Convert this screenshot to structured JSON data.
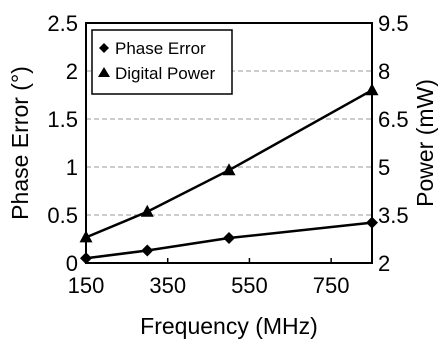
{
  "chart_data": {
    "type": "line",
    "xlabel": "Frequency (MHz)",
    "ylabel_left": "Phase Error (°)",
    "ylabel_right": "Power (mW)",
    "x_ticks": [
      "150",
      "350",
      "550",
      "750"
    ],
    "y_left_ticks": [
      "0",
      "0.5",
      "1",
      "1.5",
      "2",
      "2.5"
    ],
    "y_right_ticks": [
      "2",
      "3.5",
      "5",
      "6.5",
      "8",
      "9.5"
    ],
    "xlim": [
      150,
      850
    ],
    "ylim_left": [
      0,
      2.5
    ],
    "ylim_right": [
      2,
      9.5
    ],
    "grid": true,
    "legend_position": "top-left",
    "series": [
      {
        "name": "Phase Error",
        "axis": "left",
        "marker": "diamond",
        "x": [
          150,
          300,
          500,
          850
        ],
        "y": [
          0.05,
          0.13,
          0.26,
          0.42
        ]
      },
      {
        "name": "Digital Power",
        "axis": "right",
        "marker": "triangle",
        "x": [
          150,
          300,
          500,
          850
        ],
        "y": [
          2.8,
          3.6,
          4.9,
          7.4
        ]
      }
    ]
  }
}
